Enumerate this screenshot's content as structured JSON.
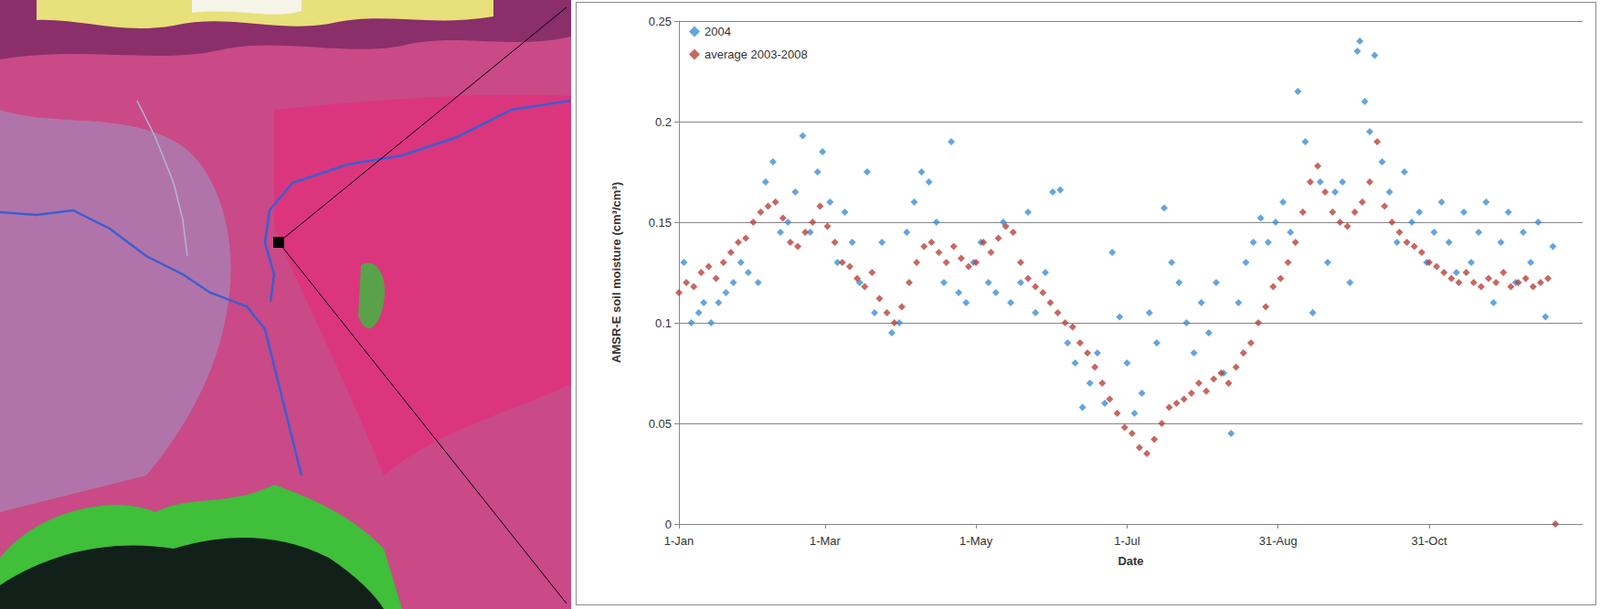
{
  "chart_data": {
    "type": "scatter",
    "x_label": "Date",
    "y_label": "AMSR-E soil moisture (cm³/cm³)",
    "xlim": [
      0,
      365
    ],
    "xticks": [
      {
        "value": 0,
        "label": "1-Jan"
      },
      {
        "value": 59,
        "label": "1-Mar"
      },
      {
        "value": 120,
        "label": "1-May"
      },
      {
        "value": 181,
        "label": "1-Jul"
      },
      {
        "value": 242,
        "label": "31-Aug"
      },
      {
        "value": 303,
        "label": "31-Oct"
      }
    ],
    "ylim": [
      0,
      0.25
    ],
    "yticks": [
      0,
      0.05,
      0.1,
      0.15,
      0.2,
      0.25
    ],
    "grid": true,
    "legend": "upper left",
    "series": [
      {
        "name": "2004",
        "color": "#3f8fd2",
        "marker": "diamond",
        "x": [
          2,
          5,
          8,
          10,
          13,
          16,
          19,
          22,
          25,
          28,
          32,
          35,
          38,
          41,
          44,
          47,
          50,
          53,
          56,
          58,
          61,
          64,
          67,
          70,
          73,
          76,
          79,
          82,
          86,
          89,
          92,
          95,
          98,
          101,
          104,
          107,
          110,
          113,
          116,
          119,
          122,
          125,
          128,
          131,
          134,
          138,
          141,
          144,
          148,
          151,
          154,
          157,
          160,
          163,
          166,
          169,
          172,
          175,
          178,
          181,
          184,
          187,
          190,
          193,
          196,
          199,
          202,
          205,
          208,
          211,
          214,
          217,
          220,
          223,
          226,
          229,
          232,
          235,
          238,
          241,
          244,
          247,
          250,
          253,
          256,
          259,
          262,
          265,
          268,
          271,
          274,
          275,
          277,
          279,
          281,
          284,
          287,
          290,
          293,
          296,
          299,
          302,
          305,
          308,
          311,
          314,
          317,
          320,
          323,
          326,
          329,
          332,
          335,
          338,
          341,
          344,
          347,
          350,
          353
        ],
        "values": [
          0.13,
          0.1,
          0.105,
          0.11,
          0.1,
          0.11,
          0.115,
          0.12,
          0.13,
          0.125,
          0.12,
          0.17,
          0.18,
          0.145,
          0.15,
          0.165,
          0.193,
          0.145,
          0.175,
          0.185,
          0.16,
          0.13,
          0.155,
          0.14,
          0.12,
          0.175,
          0.105,
          0.14,
          0.095,
          0.1,
          0.145,
          0.16,
          0.175,
          0.17,
          0.15,
          0.12,
          0.19,
          0.115,
          0.11,
          0.13,
          0.14,
          0.12,
          0.115,
          0.15,
          0.11,
          0.12,
          0.155,
          0.105,
          0.125,
          0.165,
          0.166,
          0.09,
          0.08,
          0.058,
          0.07,
          0.085,
          0.06,
          0.135,
          0.103,
          0.08,
          0.055,
          0.065,
          0.105,
          0.09,
          0.157,
          0.13,
          0.12,
          0.1,
          0.085,
          0.11,
          0.095,
          0.12,
          0.075,
          0.045,
          0.11,
          0.13,
          0.14,
          0.152,
          0.14,
          0.15,
          0.16,
          0.145,
          0.215,
          0.19,
          0.105,
          0.17,
          0.13,
          0.165,
          0.17,
          0.12,
          0.235,
          0.24,
          0.21,
          0.195,
          0.233,
          0.18,
          0.165,
          0.14,
          0.175,
          0.15,
          0.155,
          0.13,
          0.145,
          0.16,
          0.14,
          0.125,
          0.155,
          0.13,
          0.145,
          0.16,
          0.11,
          0.14,
          0.155,
          0.12,
          0.145,
          0.13,
          0.15,
          0.103,
          0.138
        ]
      },
      {
        "name": "average 2003-2008",
        "color": "#b8413b",
        "marker": "diamond",
        "x": [
          0,
          3,
          6,
          9,
          12,
          15,
          18,
          21,
          24,
          27,
          30,
          33,
          36,
          39,
          42,
          45,
          48,
          51,
          54,
          57,
          60,
          63,
          66,
          69,
          72,
          75,
          78,
          81,
          84,
          87,
          90,
          93,
          96,
          99,
          102,
          105,
          108,
          111,
          114,
          117,
          120,
          123,
          126,
          129,
          132,
          135,
          138,
          141,
          144,
          147,
          150,
          153,
          156,
          159,
          162,
          165,
          168,
          171,
          174,
          177,
          180,
          183,
          186,
          189,
          192,
          195,
          198,
          201,
          204,
          207,
          210,
          213,
          216,
          219,
          222,
          225,
          228,
          231,
          234,
          237,
          240,
          243,
          246,
          249,
          252,
          255,
          258,
          261,
          264,
          267,
          270,
          273,
          276,
          279,
          282,
          285,
          288,
          291,
          294,
          297,
          300,
          303,
          306,
          309,
          312,
          315,
          318,
          321,
          324,
          327,
          330,
          333,
          336,
          339,
          342,
          345,
          348,
          351,
          354
        ],
        "values": [
          0.115,
          0.12,
          0.118,
          0.125,
          0.128,
          0.122,
          0.13,
          0.135,
          0.14,
          0.142,
          0.15,
          0.155,
          0.158,
          0.16,
          0.152,
          0.14,
          0.138,
          0.145,
          0.15,
          0.158,
          0.148,
          0.14,
          0.13,
          0.128,
          0.122,
          0.118,
          0.125,
          0.112,
          0.105,
          0.1,
          0.108,
          0.12,
          0.13,
          0.138,
          0.14,
          0.135,
          0.13,
          0.138,
          0.132,
          0.128,
          0.13,
          0.14,
          0.135,
          0.142,
          0.148,
          0.145,
          0.13,
          0.122,
          0.118,
          0.115,
          0.11,
          0.105,
          0.1,
          0.098,
          0.09,
          0.085,
          0.078,
          0.07,
          0.062,
          0.055,
          0.048,
          0.045,
          0.038,
          0.035,
          0.042,
          0.05,
          0.058,
          0.06,
          0.062,
          0.065,
          0.07,
          0.066,
          0.072,
          0.075,
          0.07,
          0.078,
          0.085,
          0.09,
          0.1,
          0.108,
          0.118,
          0.122,
          0.13,
          0.14,
          0.155,
          0.17,
          0.178,
          0.165,
          0.155,
          0.15,
          0.148,
          0.155,
          0.16,
          0.17,
          0.19,
          0.158,
          0.15,
          0.145,
          0.14,
          0.138,
          0.135,
          0.13,
          0.128,
          0.125,
          0.122,
          0.12,
          0.125,
          0.12,
          0.118,
          0.122,
          0.12,
          0.125,
          0.118,
          0.12,
          0.122,
          0.118,
          0.12,
          0.122,
          0
        ]
      }
    ]
  }
}
